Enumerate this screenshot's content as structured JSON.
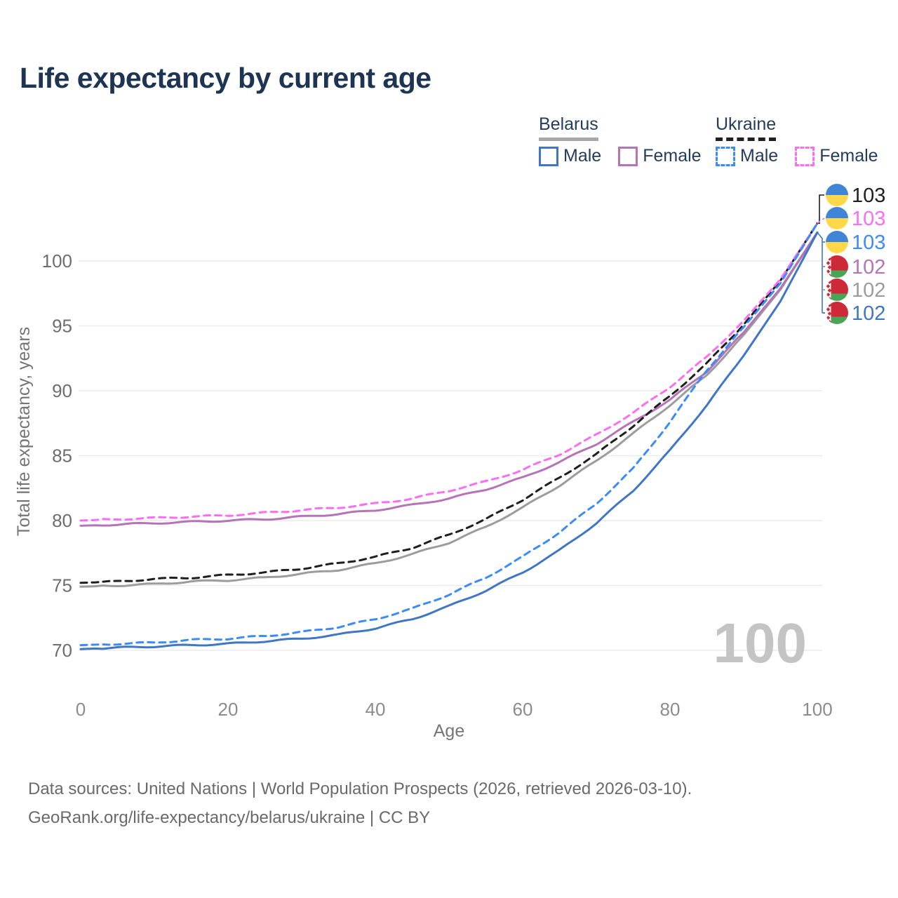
{
  "title": "Life expectancy by current age",
  "legend": {
    "belarus": {
      "label": "Belarus",
      "male": "Male",
      "female": "Female"
    },
    "ukraine": {
      "label": "Ukraine",
      "male": "Male",
      "female": "Female"
    }
  },
  "watermark": "100",
  "footer": {
    "line1": "Data sources: United Nations | World Population Prospects (2026, retrieved 2026-03-10).",
    "line2": "GeoRank.org/life-expectancy/belarus/ukraine | CC BY"
  },
  "colors": {
    "title": "#1d3553",
    "legend_text": "#243d5c",
    "grid": "#ececec",
    "x_tick": "#8c8c8c",
    "y_tick": "#6e6e6e",
    "axis_title": "#757575",
    "watermark": "#c4c4c4",
    "footer": "#6a6a6a",
    "belarus_male": "#4076c4",
    "belarus_female": "#b474b6",
    "belarus_total": "#9c9c9c",
    "ukraine_male": "#3d8bf5",
    "ukraine_female": "#fb6ef2",
    "ukraine_total": "#1f1f1f",
    "flag_ua_blue": "#4186d6",
    "flag_ua_yellow": "#ffd84a",
    "flag_by_red": "#ce2939",
    "flag_by_green": "#4aa657"
  },
  "chart_data": {
    "type": "line",
    "title": "Life expectancy by current age",
    "xlabel": "Age",
    "ylabel": "Total life expectancy, years",
    "xlim": [
      0,
      100
    ],
    "ylim": [
      68,
      104
    ],
    "xticks": [
      0,
      20,
      40,
      60,
      80,
      100
    ],
    "yticks": [
      70,
      75,
      80,
      85,
      90,
      95,
      100
    ],
    "grid": "horizontal-only",
    "legend_position": "top-right",
    "x": [
      0,
      5,
      10,
      15,
      20,
      25,
      30,
      35,
      40,
      45,
      50,
      55,
      60,
      65,
      70,
      75,
      80,
      85,
      90,
      95,
      100
    ],
    "series": [
      {
        "name": "Belarus Total",
        "country": "Belarus",
        "group": "Total",
        "line": "solid",
        "color_key": "belarus_total",
        "values": [
          74.9,
          75.0,
          75.1,
          75.3,
          75.4,
          75.6,
          75.9,
          76.2,
          76.7,
          77.4,
          78.3,
          79.5,
          81.0,
          82.7,
          84.6,
          86.7,
          88.9,
          91.2,
          94.3,
          97.8,
          102.2
        ]
      },
      {
        "name": "Belarus Female",
        "country": "Belarus",
        "group": "Female",
        "line": "solid",
        "color_key": "belarus_female",
        "values": [
          79.6,
          79.7,
          79.8,
          79.9,
          80.0,
          80.1,
          80.3,
          80.5,
          80.8,
          81.2,
          81.7,
          82.4,
          83.3,
          84.5,
          85.9,
          87.6,
          89.3,
          91.5,
          94.5,
          97.9,
          102.2
        ]
      },
      {
        "name": "Belarus Male",
        "country": "Belarus",
        "group": "Male",
        "line": "solid",
        "color_key": "belarus_male",
        "values": [
          70.1,
          70.2,
          70.3,
          70.4,
          70.5,
          70.7,
          70.9,
          71.2,
          71.7,
          72.4,
          73.4,
          74.6,
          76.0,
          77.7,
          79.8,
          82.3,
          85.4,
          88.9,
          92.7,
          96.9,
          102.2
        ]
      },
      {
        "name": "Ukraine Total",
        "country": "Ukraine",
        "group": "Total",
        "line": "dashed",
        "color_key": "ukraine_total",
        "values": [
          75.2,
          75.3,
          75.5,
          75.6,
          75.8,
          76.0,
          76.3,
          76.7,
          77.2,
          77.9,
          78.9,
          80.1,
          81.6,
          83.3,
          85.1,
          87.3,
          89.6,
          92.1,
          95.1,
          98.5,
          102.9
        ]
      },
      {
        "name": "Ukraine Female",
        "country": "Ukraine",
        "group": "Female",
        "line": "dashed",
        "color_key": "ukraine_female",
        "values": [
          80.0,
          80.1,
          80.2,
          80.3,
          80.4,
          80.6,
          80.8,
          81.0,
          81.3,
          81.7,
          82.3,
          83.0,
          83.9,
          85.1,
          86.6,
          88.3,
          90.3,
          92.6,
          95.4,
          98.6,
          102.9
        ]
      },
      {
        "name": "Ukraine Male",
        "country": "Ukraine",
        "group": "Male",
        "line": "dashed",
        "color_key": "ukraine_male",
        "values": [
          70.4,
          70.5,
          70.6,
          70.8,
          70.9,
          71.1,
          71.4,
          71.8,
          72.4,
          73.2,
          74.3,
          75.6,
          77.2,
          79.1,
          81.3,
          84.0,
          87.6,
          91.6,
          94.9,
          98.3,
          102.9
        ]
      }
    ],
    "end_labels": [
      {
        "flag": "ukraine",
        "text": "103",
        "color_key": "ukraine_total"
      },
      {
        "flag": "ukraine",
        "text": "103",
        "color_key": "ukraine_female"
      },
      {
        "flag": "ukraine",
        "text": "103",
        "color_key": "ukraine_male"
      },
      {
        "flag": "belarus",
        "text": "102",
        "color_key": "belarus_female"
      },
      {
        "flag": "belarus",
        "text": "102",
        "color_key": "belarus_total"
      },
      {
        "flag": "belarus",
        "text": "102",
        "color_key": "belarus_male"
      }
    ]
  }
}
